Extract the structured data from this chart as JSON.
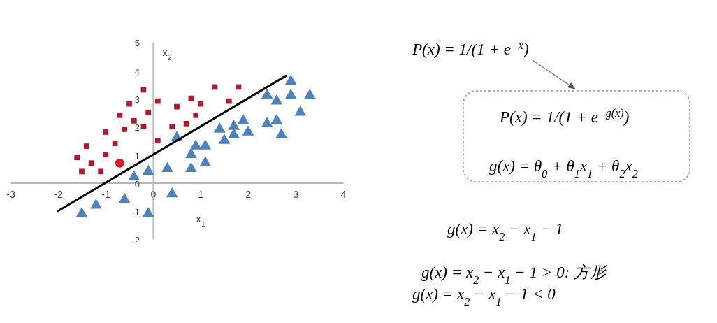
{
  "chart_data": {
    "type": "scatter",
    "xlabel": "x$_{1}$",
    "ylabel": "x$_{2}$",
    "xlim": [
      -3,
      4
    ],
    "ylim": [
      -2,
      5
    ],
    "xticks": [
      -3,
      -2,
      -1,
      0,
      1,
      2,
      3,
      4
    ],
    "yticks": [
      -2,
      -1,
      0,
      1,
      2,
      3,
      4,
      5
    ],
    "series": [
      {
        "type": "scatter",
        "marker": "square",
        "color": "#b0182b",
        "x": [
          -1.6,
          -1.5,
          -1.4,
          -1.3,
          -1.1,
          -1.0,
          -1.0,
          -0.8,
          -0.7,
          -0.6,
          -0.5,
          -0.4,
          -0.2,
          -0.2,
          -0.1,
          0.1,
          0.1,
          0.4,
          0.5,
          0.7,
          0.8,
          0.9,
          1.0,
          1.3,
          1.6,
          1.8
        ],
        "values": [
          0.9,
          0.4,
          1.3,
          0.7,
          0.4,
          1.8,
          1.0,
          1.4,
          2.4,
          1.9,
          2.8,
          2.2,
          2.0,
          3.3,
          2.5,
          2.9,
          1.5,
          2.0,
          2.7,
          2.1,
          3.0,
          2.4,
          2.8,
          3.4,
          2.9,
          3.4
        ]
      },
      {
        "type": "scatter",
        "marker": "circle",
        "color": "#d91c2a",
        "x": [
          -0.7
        ],
        "values": [
          0.7
        ]
      },
      {
        "type": "scatter",
        "marker": "triangle",
        "color": "#4f81bd",
        "x": [
          -0.4,
          -0.1,
          0.3,
          0.5,
          -1.5,
          -1.2,
          -0.6,
          -0.1,
          0.4,
          0.8,
          0.8,
          0.9,
          1.1,
          1.1,
          1.4,
          1.5,
          1.7,
          1.7,
          1.9,
          2.0,
          2.4,
          2.4,
          2.6,
          2.6,
          2.7,
          2.9,
          2.9,
          3.1,
          3.3
        ],
        "values": [
          0.2,
          0.4,
          0.5,
          1.6,
          -1.1,
          -0.8,
          -0.6,
          -1.1,
          -0.4,
          1.0,
          0.5,
          1.3,
          0.7,
          1.3,
          1.9,
          1.5,
          2.0,
          1.7,
          2.2,
          1.8,
          2.1,
          3.1,
          2.2,
          2.9,
          1.7,
          3.6,
          3.1,
          2.5,
          3.1
        ]
      },
      {
        "type": "line",
        "color": "#000000",
        "line_style": "solid",
        "x": [
          -2,
          2.8
        ],
        "values": [
          -1,
          3.8
        ]
      }
    ],
    "annotations": [
      "P(x) = 1/(1 + e$^{−x}$)",
      "P(x) = 1/(1 + e$^{−g(x)}$)",
      "g(x) = θ$_{0}$ + θ$_{1}$x$_{1}$ + θ$_{2}$x$_{2}$",
      "g(x) = x$_{2}$ − x$_{1}$ − 1",
      "g(x) = x$_{2}$ − x$_{1}$ − 1 > 0: 方形",
      "g(x) = x$_{2}$ − x$_{1}$ − 1 < 0"
    ]
  }
}
